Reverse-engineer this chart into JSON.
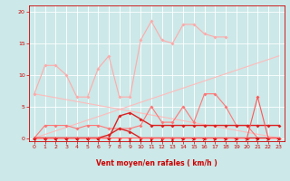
{
  "bg_color": "#cce8e8",
  "grid_color": "#ffffff",
  "xlabel": "Vent moyen/en rafales ( km/h )",
  "x_ticks": [
    0,
    1,
    2,
    3,
    4,
    5,
    6,
    7,
    8,
    9,
    10,
    11,
    12,
    13,
    14,
    15,
    16,
    17,
    18,
    19,
    20,
    21,
    22,
    23
  ],
  "y_ticks": [
    0,
    5,
    10,
    15,
    20
  ],
  "ylim": [
    -0.5,
    21
  ],
  "xlim": [
    -0.5,
    23.5
  ],
  "series": [
    {
      "color": "#ffaaaa",
      "lw": 0.8,
      "marker": true,
      "ms": 2.0,
      "data": [
        0,
        7,
        1,
        11.5,
        2,
        11.5,
        3,
        10,
        4,
        6.5,
        5,
        6.5,
        6,
        11,
        7,
        13,
        8,
        6.5,
        9,
        6.5,
        10,
        15.5,
        11,
        18.5,
        12,
        15.5,
        13,
        15,
        14,
        18,
        15,
        18,
        16,
        16.5,
        17,
        16,
        18,
        16
      ]
    },
    {
      "color": "#ffbbbb",
      "lw": 0.8,
      "marker": false,
      "ms": 0,
      "data": [
        0,
        0,
        23,
        13
      ]
    },
    {
      "color": "#ffbbbb",
      "lw": 0.8,
      "marker": false,
      "ms": 0,
      "data": [
        0,
        7,
        23,
        0
      ]
    },
    {
      "color": "#ff7777",
      "lw": 0.8,
      "marker": true,
      "ms": 2.0,
      "data": [
        0,
        0,
        1,
        2,
        2,
        2,
        3,
        2,
        4,
        1.5,
        5,
        2,
        6,
        2,
        7,
        1.5,
        8,
        1.5,
        9,
        1.5,
        10,
        2,
        11,
        5,
        12,
        2.5,
        13,
        2.5,
        14,
        5,
        15,
        2.5,
        16,
        7,
        17,
        7,
        18,
        5,
        19,
        2,
        20,
        2,
        21,
        0,
        22,
        0,
        23,
        0
      ]
    },
    {
      "color": "#dd2222",
      "lw": 1.0,
      "marker": true,
      "ms": 2.0,
      "data": [
        0,
        0,
        1,
        0,
        2,
        0,
        3,
        0,
        4,
        0,
        5,
        0,
        6,
        0,
        7,
        0.5,
        8,
        1.5,
        9,
        1,
        10,
        0,
        11,
        0,
        12,
        0,
        13,
        0,
        14,
        0,
        15,
        0,
        16,
        0,
        17,
        0,
        18,
        0,
        19,
        0,
        20,
        0,
        21,
        0,
        22,
        0,
        23,
        0
      ]
    },
    {
      "color": "#dd2222",
      "lw": 1.0,
      "marker": true,
      "ms": 2.0,
      "data": [
        0,
        0,
        1,
        0,
        2,
        0,
        3,
        0,
        4,
        0,
        5,
        0,
        6,
        0,
        7,
        0,
        8,
        3.5,
        9,
        4,
        10,
        3,
        11,
        2,
        12,
        2,
        13,
        2,
        14,
        2,
        15,
        2,
        16,
        2,
        17,
        2,
        18,
        2,
        19,
        2,
        20,
        2,
        21,
        2,
        22,
        2,
        23,
        2
      ]
    },
    {
      "color": "#ff5555",
      "lw": 0.8,
      "marker": true,
      "ms": 2.0,
      "data": [
        0,
        0,
        1,
        0,
        2,
        0,
        3,
        0,
        4,
        0,
        5,
        0,
        6,
        0,
        7,
        0,
        8,
        0,
        9,
        0,
        10,
        0,
        11,
        0,
        12,
        0,
        13,
        0,
        14,
        0,
        15,
        0,
        16,
        0,
        17,
        0,
        18,
        0,
        19,
        0,
        20,
        0,
        21,
        6.5,
        22,
        0,
        23,
        0
      ]
    }
  ],
  "wind_arrows": {
    "color": "#cc0000",
    "x": [
      0,
      1,
      2,
      3,
      4,
      5,
      6,
      7,
      8,
      9,
      10,
      11,
      12,
      13,
      14,
      15,
      16,
      17,
      18,
      19,
      20,
      21,
      22,
      23
    ],
    "angles_deg": [
      225,
      225,
      225,
      225,
      225,
      225,
      225,
      225,
      180,
      180,
      180,
      180,
      180,
      180,
      135,
      135,
      135,
      135,
      135,
      135,
      135,
      135,
      135,
      135
    ]
  }
}
